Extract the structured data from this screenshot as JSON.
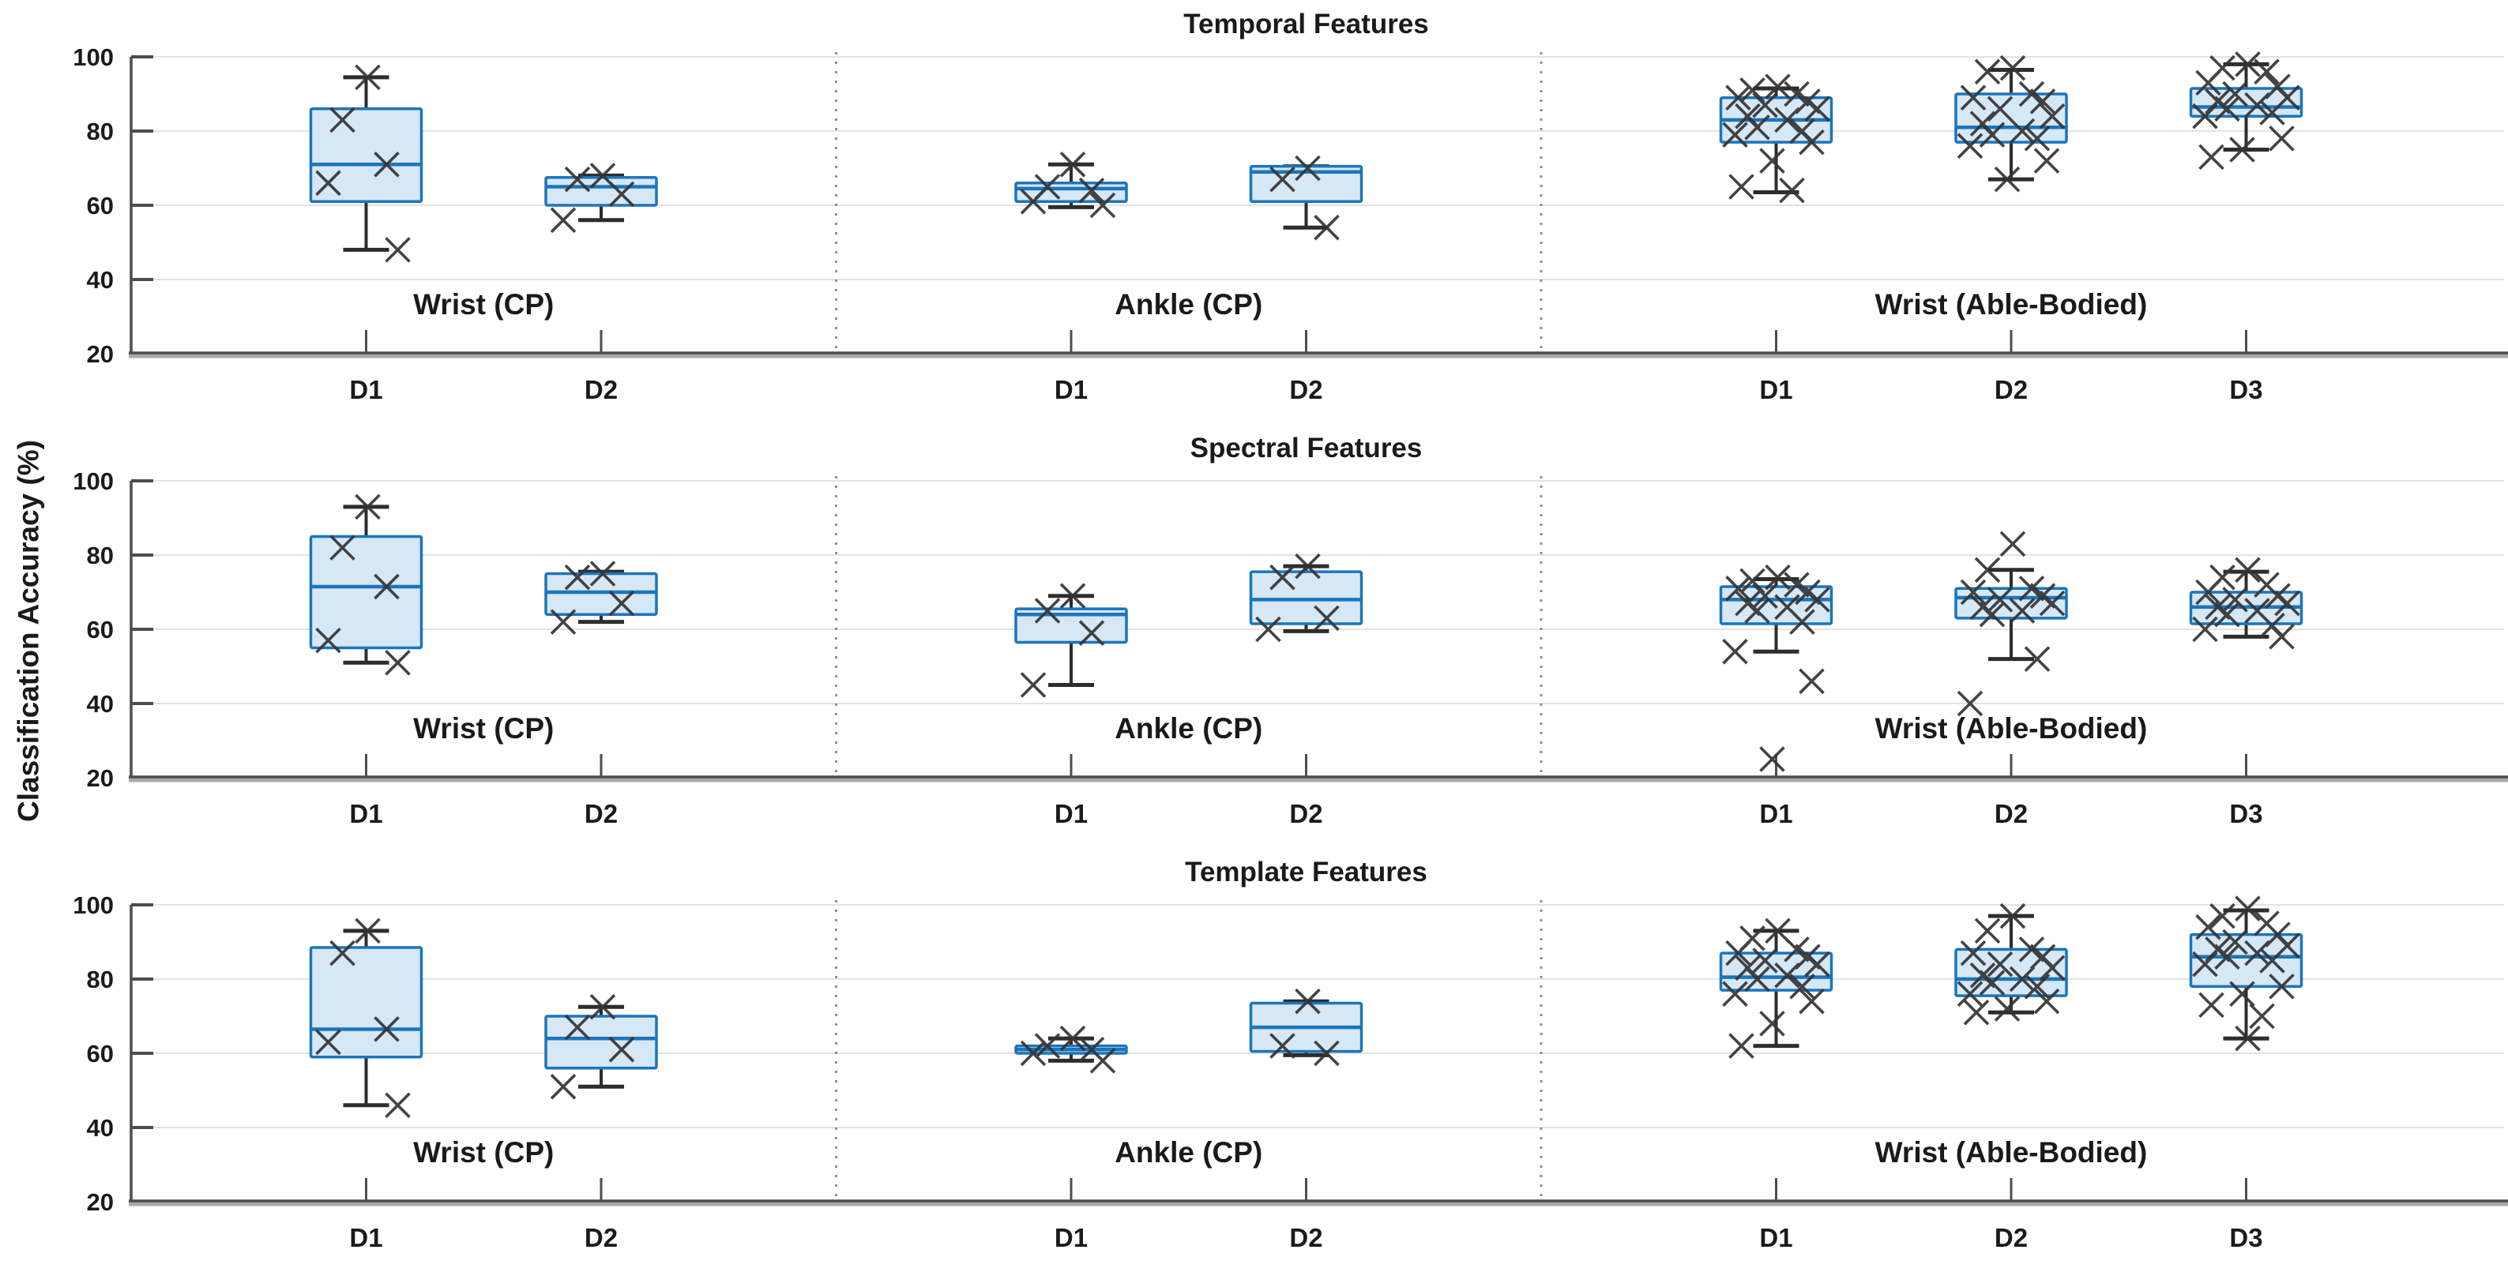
{
  "figure": {
    "ylabel": "Classification Accuracy (%)",
    "background": "#ffffff"
  },
  "style": {
    "box_fill": "#d6e7f5",
    "box_edge": "#1b75bc",
    "median_color": "#1b75bc",
    "whisker_color": "#2d2d2d",
    "marker_color": "#343434",
    "grid_color": "#e3e3e3",
    "axis_color": "#4f4f4f",
    "axis_shadow": "#a9a9a9",
    "separator_color": "#8f8f8f",
    "tick_label_color": "#262626"
  },
  "axes": {
    "y_min": 20,
    "y_max": 100,
    "y_ticks": [
      100,
      80,
      60,
      40,
      20
    ],
    "grid": true,
    "section_separator_style": "dotted"
  },
  "chart_data": {
    "type": "boxplot",
    "marker_glyph": "x",
    "panels": [
      {
        "title": "Temporal Features",
        "groups": [
          {
            "label": "Wrist (CP)",
            "boxes": [
              {
                "x_label": "D1",
                "whisker_low": 48,
                "q1": 61,
                "median": 71,
                "q3": 86,
                "whisker_high": 94.5,
                "points": [
                  94.5,
                  83,
                  71,
                  66,
                  48
                ]
              },
              {
                "x_label": "D2",
                "whisker_low": 56,
                "q1": 60,
                "median": 65,
                "q3": 67.5,
                "whisker_high": 68,
                "points": [
                  68,
                  67,
                  63,
                  56
                ]
              }
            ]
          },
          {
            "label": "Ankle (CP)",
            "boxes": [
              {
                "x_label": "D1",
                "whisker_low": 59.5,
                "q1": 61,
                "median": 64.5,
                "q3": 66,
                "whisker_high": 71,
                "points": [
                  71,
                  65,
                  64,
                  61,
                  60
                ]
              },
              {
                "x_label": "D2",
                "whisker_low": 54,
                "q1": 61,
                "median": 69,
                "q3": 70.5,
                "whisker_high": 70.5,
                "points": [
                  70,
                  67,
                  54
                ]
              }
            ]
          },
          {
            "label": "Wrist (Able-Bodied)",
            "boxes": [
              {
                "x_label": "D1",
                "whisker_low": 63.5,
                "q1": 77,
                "median": 83,
                "q3": 89,
                "whisker_high": 91.5,
                "points": [
                  92,
                  91,
                  90,
                  89,
                  88,
                  87,
                  86,
                  84,
                  83,
                  81,
                  80,
                  79,
                  77,
                  72,
                  65,
                  64
                ]
              },
              {
                "x_label": "D2",
                "whisker_low": 67,
                "q1": 77,
                "median": 81,
                "q3": 90,
                "whisker_high": 96.5,
                "points": [
                  97,
                  96,
                  90,
                  89,
                  88,
                  86,
                  84,
                  82,
                  80,
                  79,
                  78,
                  76,
                  72,
                  67
                ]
              },
              {
                "x_label": "D3",
                "whisker_low": 75,
                "q1": 84,
                "median": 86.5,
                "q3": 91.5,
                "whisker_high": 98,
                "points": [
                  98,
                  97,
                  96,
                  93,
                  92,
                  90,
                  89,
                  88,
                  87,
                  86,
                  85,
                  84,
                  78,
                  75,
                  73
                ]
              }
            ]
          }
        ]
      },
      {
        "title": "Spectral Features",
        "groups": [
          {
            "label": "Wrist (CP)",
            "boxes": [
              {
                "x_label": "D1",
                "whisker_low": 51,
                "q1": 55,
                "median": 71.5,
                "q3": 85,
                "whisker_high": 93,
                "points": [
                  93,
                  82,
                  71.5,
                  57,
                  51
                ]
              },
              {
                "x_label": "D2",
                "whisker_low": 62,
                "q1": 64,
                "median": 70,
                "q3": 75,
                "whisker_high": 75.5,
                "points": [
                  75,
                  74,
                  67,
                  62
                ]
              }
            ]
          },
          {
            "label": "Ankle (CP)",
            "boxes": [
              {
                "x_label": "D1",
                "whisker_low": 45,
                "q1": 56.5,
                "median": 64,
                "q3": 65.5,
                "whisker_high": 69,
                "points": [
                  69,
                  65,
                  59,
                  45
                ]
              },
              {
                "x_label": "D2",
                "whisker_low": 59.5,
                "q1": 61.5,
                "median": 68,
                "q3": 75.5,
                "whisker_high": 77,
                "points": [
                  77,
                  74,
                  63,
                  60
                ]
              }
            ]
          },
          {
            "label": "Wrist (Able-Bodied)",
            "boxes": [
              {
                "x_label": "D1",
                "whisker_low": 54,
                "q1": 61.5,
                "median": 68,
                "q3": 71.5,
                "whisker_high": 73.5,
                "points": [
                  74,
                  73,
                  72,
                  71,
                  70,
                  69,
                  68,
                  67,
                  66,
                  65,
                  62,
                  54,
                  46,
                  25
                ]
              },
              {
                "x_label": "D2",
                "whisker_low": 52,
                "q1": 63,
                "median": 68.5,
                "q3": 71,
                "whisker_high": 76,
                "points": [
                  83,
                  76,
                  71,
                  70,
                  69,
                  68,
                  67,
                  66,
                  65,
                  64,
                  52,
                  40
                ]
              },
              {
                "x_label": "D3",
                "whisker_low": 58,
                "q1": 61.5,
                "median": 66,
                "q3": 70,
                "whisker_high": 75.5,
                "points": [
                  76,
                  74,
                  72,
                  70,
                  69,
                  68,
                  67,
                  66,
                  65,
                  64,
                  61,
                  60,
                  58
                ]
              }
            ]
          }
        ]
      },
      {
        "title": "Template Features",
        "groups": [
          {
            "label": "Wrist (CP)",
            "boxes": [
              {
                "x_label": "D1",
                "whisker_low": 46,
                "q1": 59,
                "median": 66.5,
                "q3": 88.5,
                "whisker_high": 93,
                "points": [
                  93,
                  87,
                  66.5,
                  63,
                  46
                ]
              },
              {
                "x_label": "D2",
                "whisker_low": 51,
                "q1": 56,
                "median": 64,
                "q3": 70,
                "whisker_high": 72.5,
                "points": [
                  72.5,
                  67,
                  61,
                  51
                ]
              }
            ]
          },
          {
            "label": "Ankle (CP)",
            "boxes": [
              {
                "x_label": "D1",
                "whisker_low": 58,
                "q1": 60,
                "median": 61,
                "q3": 62,
                "whisker_high": 64,
                "points": [
                  64,
                  62,
                  61,
                  60,
                  58
                ]
              },
              {
                "x_label": "D2",
                "whisker_low": 59.5,
                "q1": 60.5,
                "median": 67,
                "q3": 73.5,
                "whisker_high": 74,
                "points": [
                  74,
                  62,
                  60
                ]
              }
            ]
          },
          {
            "label": "Wrist (Able-Bodied)",
            "boxes": [
              {
                "x_label": "D1",
                "whisker_low": 62,
                "q1": 77,
                "median": 80.5,
                "q3": 87,
                "whisker_high": 93,
                "points": [
                  93,
                  91,
                  88,
                  87,
                  86,
                  85,
                  84,
                  83,
                  81,
                  80,
                  78,
                  76,
                  74,
                  68,
                  62
                ]
              },
              {
                "x_label": "D2",
                "whisker_low": 71,
                "q1": 75.5,
                "median": 80,
                "q3": 88,
                "whisker_high": 97,
                "points": [
                  97,
                  93,
                  88,
                  87,
                  86,
                  84,
                  83,
                  81,
                  80,
                  79,
                  78,
                  76,
                  74,
                  72,
                  71
                ]
              },
              {
                "x_label": "D3",
                "whisker_low": 64,
                "q1": 78,
                "median": 86,
                "q3": 92,
                "whisker_high": 98.5,
                "points": [
                  99,
                  97,
                  95,
                  94,
                  92,
                  90,
                  89,
                  88,
                  87,
                  86,
                  85,
                  84,
                  78,
                  76,
                  73,
                  70,
                  64
                ]
              }
            ]
          }
        ]
      }
    ]
  }
}
